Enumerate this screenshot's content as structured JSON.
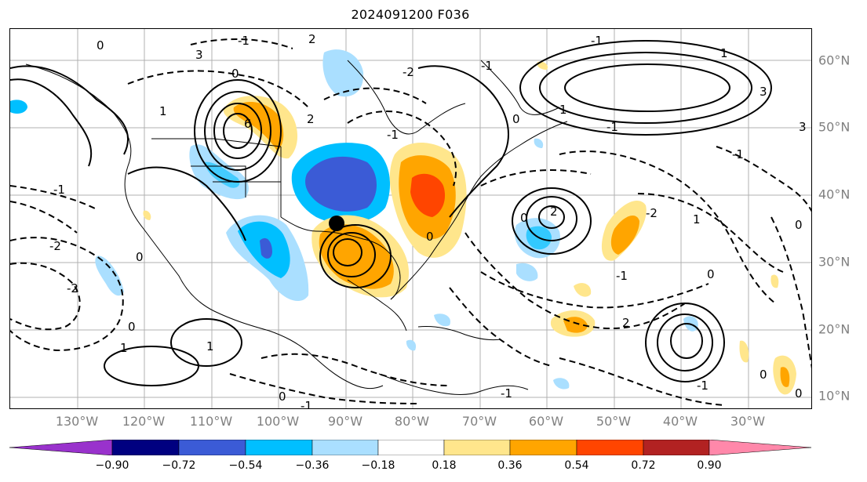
{
  "title": "2024091200 F036",
  "lat_labels": [
    "60°N",
    "50°N",
    "40°N",
    "30°N",
    "20°N",
    "10°N"
  ],
  "lon_labels": [
    "130°W",
    "120°W",
    "110°W",
    "100°W",
    "90°W",
    "80°W",
    "70°W",
    "60°W",
    "50°W",
    "40°W",
    "30°W"
  ],
  "colorbar": {
    "ticks": [
      "−0.90",
      "−0.72",
      "−0.54",
      "−0.36",
      "−0.18",
      "0.18",
      "0.36",
      "0.54",
      "0.72",
      "0.90"
    ],
    "colors": [
      "#9932cc",
      "#000080",
      "#3b5bd6",
      "#00bfff",
      "#aadfff",
      "#ffffff",
      "#ffe68c",
      "#ffa500",
      "#ff4500",
      "#b22222",
      "#ff88aa"
    ]
  },
  "contour_labels": [
    "-2",
    "0",
    "-1",
    "0",
    "2",
    "-2",
    "3",
    "6",
    "0",
    "1",
    "-1",
    "-1",
    "0",
    "2",
    "-2",
    "-1",
    "0",
    "1",
    "-1",
    "2",
    "-1",
    "0",
    "1",
    "-1",
    "0",
    "3",
    "-1",
    "1",
    "3",
    "0",
    "-2",
    "0",
    "2",
    "-1",
    "1",
    "0",
    "-1",
    "0",
    "0",
    "1",
    "-1"
  ],
  "storm_marker": "storm-center"
}
